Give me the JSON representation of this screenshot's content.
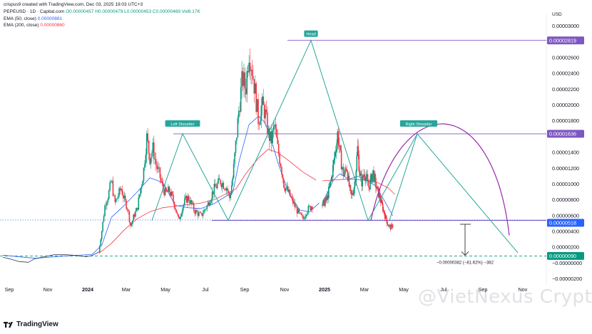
{
  "header": {
    "attribution": "crispus9 created with TradingView.com, Dec 03, 2025 19:03 UTC+3",
    "symbol": "PEPEUSD · 1D · Capital.com",
    "ohlc_o": "O0.00000457",
    "ohlc_h": "H0.00000479",
    "ohlc_l": "L0.00000453",
    "ohlc_c": "C0.00000469",
    "vol": "Vol6.17K",
    "ema50_label": "EMA (50, close)",
    "ema50_value": "0.00000881",
    "ema200_label": "EMA (200, close)",
    "ema200_value": "0.00000860"
  },
  "footer": {
    "logo_text": "TradingView"
  },
  "watermark": "@VietNexus Crypto",
  "colors": {
    "up": "#089981",
    "down": "#f23645",
    "ema50": "#2962ff",
    "ema200": "#f23645",
    "pattern": "#26a69a",
    "level": "#7e57c2",
    "cup": "#9c27b0",
    "current": "#2962ff",
    "target": "#089981"
  },
  "chart_data": {
    "type": "line",
    "currency": "USD",
    "x_axis_labels": [
      "Sep",
      "Nov",
      "2024",
      "Mar",
      "May",
      "Jul",
      "Sep",
      "Nov",
      "2025",
      "Mar",
      "May",
      "Jul",
      "Sep",
      "Nov"
    ],
    "y_ticks": [
      "0.00003000",
      "0.00002600",
      "0.00002400",
      "0.00002200",
      "0.00002000",
      "0.00001800",
      "0.00001400",
      "0.00001200",
      "0.00001000",
      "0.00000800",
      "0.00000600",
      "0.00000400",
      "0.00000200",
      "−0.00000000",
      "−0.00000200"
    ],
    "y_tick_values": [
      30,
      26,
      24,
      22,
      20,
      18,
      14,
      12,
      10,
      8,
      6,
      4,
      2,
      0,
      -2
    ],
    "ylim": [
      -2.4,
      31.5
    ],
    "y_unit_note": "values in millionths of a USD",
    "price_series_points": [
      [
        0.0,
        0.75
      ],
      [
        0.02,
        0.55
      ],
      [
        0.05,
        0.2
      ],
      [
        0.08,
        0.1
      ],
      [
        0.1,
        0.55
      ],
      [
        0.13,
        0.8
      ],
      [
        0.16,
        1.05
      ],
      [
        0.2,
        1.05
      ],
      [
        0.23,
        0.95
      ],
      [
        0.26,
        0.8
      ],
      [
        0.28,
        0.95
      ],
      [
        0.3,
        1.4
      ],
      [
        0.31,
        4.2
      ],
      [
        0.32,
        7.5
      ],
      [
        0.33,
        8.6
      ],
      [
        0.34,
        10.5
      ],
      [
        0.35,
        7.5
      ],
      [
        0.37,
        9.5
      ],
      [
        0.38,
        8.0
      ],
      [
        0.39,
        7.0
      ],
      [
        0.4,
        4.6
      ],
      [
        0.41,
        6.0
      ],
      [
        0.42,
        6.8
      ],
      [
        0.44,
        11.5
      ],
      [
        0.45,
        16.0
      ],
      [
        0.46,
        13.3
      ],
      [
        0.47,
        14.5
      ],
      [
        0.48,
        12.3
      ],
      [
        0.49,
        11.2
      ],
      [
        0.5,
        9.5
      ],
      [
        0.51,
        8.8
      ],
      [
        0.52,
        9.2
      ],
      [
        0.53,
        8.3
      ],
      [
        0.54,
        7.0
      ],
      [
        0.55,
        5.4
      ],
      [
        0.56,
        6.8
      ],
      [
        0.57,
        7.9
      ],
      [
        0.58,
        8.3
      ],
      [
        0.59,
        7.5
      ],
      [
        0.6,
        6.6
      ],
      [
        0.62,
        6.0
      ],
      [
        0.64,
        7.3
      ],
      [
        0.66,
        9.3
      ],
      [
        0.68,
        10.4
      ],
      [
        0.7,
        9.6
      ],
      [
        0.71,
        8.2
      ],
      [
        0.72,
        11.0
      ],
      [
        0.73,
        15.5
      ],
      [
        0.74,
        20.0
      ],
      [
        0.75,
        23.5
      ],
      [
        0.76,
        22.0
      ],
      [
        0.77,
        27.0
      ],
      [
        0.78,
        24.6
      ],
      [
        0.79,
        21.5
      ],
      [
        0.8,
        18.0
      ],
      [
        0.81,
        20.0
      ],
      [
        0.82,
        19.2
      ],
      [
        0.83,
        16.5
      ],
      [
        0.84,
        15.4
      ],
      [
        0.85,
        17.5
      ],
      [
        0.86,
        14.5
      ],
      [
        0.87,
        12.5
      ],
      [
        0.88,
        9.8
      ],
      [
        0.89,
        9.2
      ],
      [
        0.9,
        8.4
      ],
      [
        0.91,
        7.5
      ],
      [
        0.92,
        6.7
      ],
      [
        0.93,
        6.0
      ],
      [
        0.94,
        5.6
      ],
      [
        0.95,
        6.6
      ],
      [
        0.96,
        7.0
      ],
      [
        0.97,
        7.4
      ]
    ],
    "price_series_points_2": [
      [
        0.0,
        7.4
      ],
      [
        0.02,
        8.0
      ],
      [
        0.04,
        10.5
      ],
      [
        0.06,
        14.4
      ],
      [
        0.07,
        16.5
      ],
      [
        0.08,
        14.0
      ],
      [
        0.09,
        12.0
      ],
      [
        0.1,
        11.0
      ],
      [
        0.11,
        12.5
      ],
      [
        0.12,
        10.0
      ],
      [
        0.13,
        8.4
      ],
      [
        0.14,
        9.0
      ],
      [
        0.15,
        10.8
      ],
      [
        0.16,
        14.5
      ],
      [
        0.17,
        11.3
      ],
      [
        0.18,
        10.2
      ],
      [
        0.19,
        11.5
      ],
      [
        0.2,
        10.8
      ],
      [
        0.21,
        9.5
      ],
      [
        0.22,
        10.5
      ],
      [
        0.23,
        11.5
      ],
      [
        0.24,
        10.2
      ],
      [
        0.25,
        9.2
      ],
      [
        0.26,
        8.5
      ],
      [
        0.27,
        7.4
      ],
      [
        0.28,
        6.5
      ],
      [
        0.29,
        5.5
      ],
      [
        0.3,
        4.8
      ],
      [
        0.31,
        4.5
      ],
      [
        0.32,
        4.7
      ]
    ],
    "ema50_points": [
      [
        0.0,
        1.0
      ],
      [
        0.1,
        0.6
      ],
      [
        0.2,
        0.9
      ],
      [
        0.28,
        1.1
      ],
      [
        0.31,
        2.3
      ],
      [
        0.34,
        5.8
      ],
      [
        0.38,
        7.3
      ],
      [
        0.42,
        9.0
      ],
      [
        0.46,
        10.8
      ],
      [
        0.5,
        10.2
      ],
      [
        0.54,
        7.3
      ],
      [
        0.58,
        7.0
      ],
      [
        0.62,
        6.9
      ],
      [
        0.66,
        7.5
      ],
      [
        0.7,
        8.5
      ],
      [
        0.72,
        9.0
      ],
      [
        0.74,
        13.0
      ],
      [
        0.77,
        17.5
      ],
      [
        0.8,
        18.6
      ],
      [
        0.82,
        17.8
      ],
      [
        0.84,
        15.6
      ],
      [
        0.86,
        12.8
      ],
      [
        0.88,
        10.5
      ],
      [
        0.9,
        8.4
      ],
      [
        0.93,
        6.7
      ],
      [
        0.96,
        6.5
      ],
      [
        0.99,
        7.6
      ]
    ],
    "ema50_points_2": [
      [
        0.0,
        7.6
      ],
      [
        0.05,
        10.5
      ],
      [
        0.08,
        11.3
      ],
      [
        0.12,
        10.6
      ],
      [
        0.16,
        11.0
      ],
      [
        0.2,
        10.5
      ],
      [
        0.24,
        9.8
      ],
      [
        0.28,
        8.0
      ],
      [
        0.32,
        6.0
      ]
    ],
    "ema200_points": [
      [
        0.3,
        1.2
      ],
      [
        0.34,
        2.5
      ],
      [
        0.38,
        4.2
      ],
      [
        0.42,
        5.6
      ],
      [
        0.46,
        6.5
      ],
      [
        0.5,
        7.0
      ],
      [
        0.54,
        7.2
      ],
      [
        0.58,
        7.4
      ],
      [
        0.62,
        7.6
      ],
      [
        0.66,
        8.0
      ],
      [
        0.7,
        8.8
      ],
      [
        0.73,
        9.4
      ],
      [
        0.76,
        11.3
      ],
      [
        0.8,
        13.3
      ],
      [
        0.83,
        14.4
      ],
      [
        0.86,
        14.0
      ],
      [
        0.9,
        12.8
      ],
      [
        0.94,
        11.5
      ],
      [
        0.98,
        10.5
      ]
    ],
    "ema200_points_2": [
      [
        0.0,
        10.4
      ],
      [
        0.05,
        10.5
      ],
      [
        0.1,
        10.6
      ],
      [
        0.15,
        10.6
      ],
      [
        0.2,
        10.5
      ],
      [
        0.25,
        10.2
      ],
      [
        0.3,
        9.5
      ],
      [
        0.33,
        8.7
      ]
    ],
    "annotations": {
      "head_label": "Head",
      "left_shoulder_label": "Left Shoulder",
      "right_shoulder_label": "Right Shoulder",
      "measure_text": "−0.00000382 (−81.62%) −382"
    },
    "price_labels": {
      "head_level": "0.00002819",
      "shoulder_level": "0.00001636",
      "current": "0.00000518",
      "target": "0.00000090"
    },
    "levels": {
      "head": 28.19,
      "shoulder": 16.36,
      "current": 5.18,
      "target": 0.9
    },
    "grid": false
  }
}
